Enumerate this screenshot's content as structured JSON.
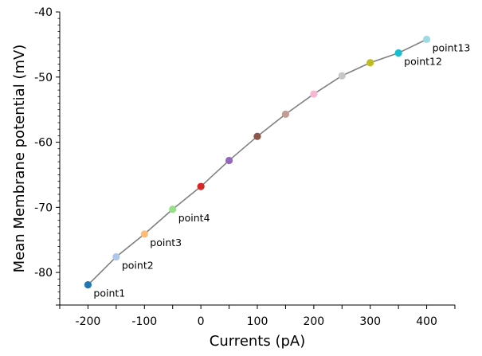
{
  "chart_data": {
    "type": "scatter",
    "title": "",
    "xlabel": "Currents (pA)",
    "ylabel": "Mean Membrane potential (mV)",
    "xlim": [
      -250,
      450
    ],
    "ylim": [
      -85,
      -40
    ],
    "x_ticks": [
      -200,
      -100,
      0,
      100,
      200,
      300,
      400
    ],
    "x_tick_labels": [
      "-200",
      "-100",
      "0",
      "100",
      "200",
      "300",
      "400"
    ],
    "y_ticks": [
      -80,
      -70,
      -60,
      -50,
      -40
    ],
    "y_tick_labels": [
      "-80",
      "-70",
      "-60",
      "-50",
      "-40"
    ],
    "grid": false,
    "line_color": "#808080",
    "points": [
      {
        "x": -200,
        "y": -81.9,
        "color": "#1f77b4",
        "label": "point1"
      },
      {
        "x": -150,
        "y": -77.6,
        "color": "#aec7e8",
        "label": "point2"
      },
      {
        "x": -100,
        "y": -74.1,
        "color": "#ffbb78",
        "label": "point3"
      },
      {
        "x": -50,
        "y": -70.3,
        "color": "#98df8a",
        "label": "point4"
      },
      {
        "x": 0,
        "y": -66.8,
        "color": "#d62728",
        "label": ""
      },
      {
        "x": 50,
        "y": -62.8,
        "color": "#9467bd",
        "label": ""
      },
      {
        "x": 100,
        "y": -59.1,
        "color": "#8c564b",
        "label": ""
      },
      {
        "x": 150,
        "y": -55.7,
        "color": "#c49c94",
        "label": ""
      },
      {
        "x": 200,
        "y": -52.6,
        "color": "#f7b6d2",
        "label": ""
      },
      {
        "x": 250,
        "y": -49.8,
        "color": "#c7c7c7",
        "label": ""
      },
      {
        "x": 300,
        "y": -47.8,
        "color": "#bcbd22",
        "label": ""
      },
      {
        "x": 350,
        "y": -46.3,
        "color": "#17becf",
        "label": "point12"
      },
      {
        "x": 400,
        "y": -44.2,
        "color": "#9edae5",
        "label": "point13"
      }
    ]
  }
}
